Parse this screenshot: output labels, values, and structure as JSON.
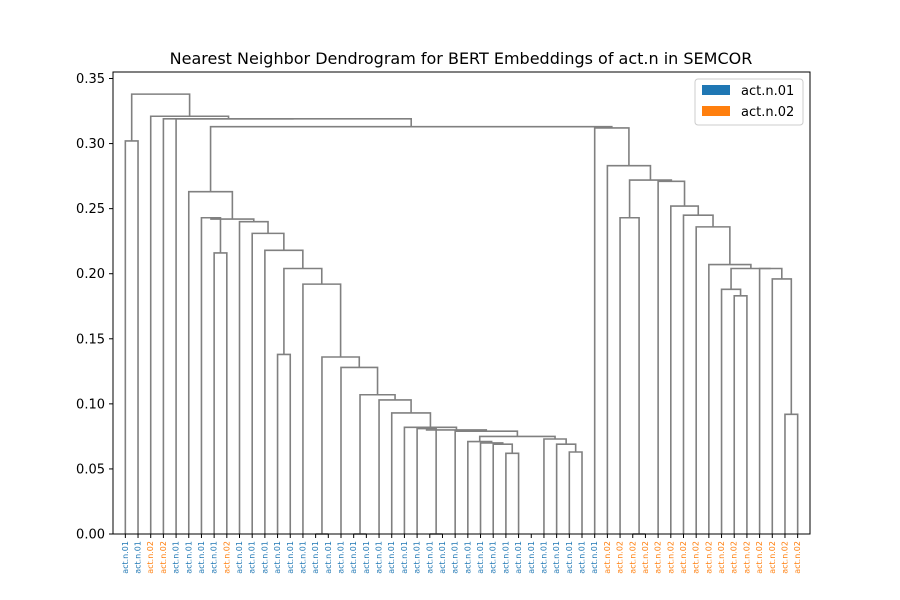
{
  "chart_data": {
    "type": "dendrogram",
    "title": "Nearest Neighbor Dendrogram for BERT Embeddings of act.n in SEMCOR",
    "xlabel": "",
    "ylabel": "",
    "ylim": [
      0,
      0.355
    ],
    "yticks": [
      0.0,
      0.05,
      0.1,
      0.15,
      0.2,
      0.25,
      0.3,
      0.35
    ],
    "ytick_labels": [
      "0.00",
      "0.05",
      "0.10",
      "0.15",
      "0.20",
      "0.25",
      "0.30",
      "0.35"
    ],
    "legend_position": "top-right",
    "legend": [
      {
        "label": "act.n.01",
        "color": "#1f77b4"
      },
      {
        "label": "act.n.02",
        "color": "#ff7f0e"
      }
    ],
    "link_color": "#808080",
    "leaves": [
      "act.n.01",
      "act.n.01",
      "act.n.02",
      "act.n.02",
      "act.n.01",
      "act.n.01",
      "act.n.01",
      "act.n.01",
      "act.n.02",
      "act.n.01",
      "act.n.01",
      "act.n.01",
      "act.n.01",
      "act.n.01",
      "act.n.01",
      "act.n.01",
      "act.n.01",
      "act.n.01",
      "act.n.01",
      "act.n.01",
      "act.n.01",
      "act.n.01",
      "act.n.01",
      "act.n.01",
      "act.n.01",
      "act.n.01",
      "act.n.01",
      "act.n.01",
      "act.n.01",
      "act.n.01",
      "act.n.01",
      "act.n.01",
      "act.n.01",
      "act.n.01",
      "act.n.01",
      "act.n.01",
      "act.n.01",
      "act.n.01",
      "act.n.02",
      "act.n.02",
      "act.n.02",
      "act.n.02",
      "act.n.02",
      "act.n.02",
      "act.n.02",
      "act.n.02",
      "act.n.02",
      "act.n.02",
      "act.n.02",
      "act.n.02",
      "act.n.02",
      "act.n.02",
      "act.n.02",
      "act.n.02"
    ],
    "links": [
      {
        "x": [
          0.5,
          0.5,
          1.5,
          1.5
        ],
        "y": [
          0.0,
          0.302,
          0.302,
          0.0
        ]
      },
      {
        "x": [
          7.5,
          7.5,
          8.5,
          8.5
        ],
        "y": [
          0.0,
          0.216,
          0.216,
          0.0
        ]
      },
      {
        "x": [
          6.5,
          6.5,
          8.0,
          8.0
        ],
        "y": [
          0.0,
          0.243,
          0.243,
          0.216
        ]
      },
      {
        "x": [
          15.5,
          15.5,
          16.5,
          16.5
        ],
        "y": [
          0.0,
          0.0,
          0.0,
          0.0
        ]
      },
      {
        "x": [
          18.5,
          18.5,
          19.5,
          19.5
        ],
        "y": [
          0.0,
          0.0,
          0.0,
          0.0
        ]
      },
      {
        "x": [
          24.5,
          24.5,
          25.5,
          25.5
        ],
        "y": [
          0.0,
          0.0,
          0.0,
          0.0
        ]
      },
      {
        "x": [
          23.5,
          23.5,
          25.0,
          25.0
        ],
        "y": [
          0.0,
          0.081,
          0.081,
          0.0
        ]
      },
      {
        "x": [
          30.5,
          30.5,
          31.5,
          31.5
        ],
        "y": [
          0.0,
          0.062,
          0.062,
          0.0
        ]
      },
      {
        "x": [
          29.5,
          29.5,
          31.0,
          31.0
        ],
        "y": [
          0.0,
          0.069,
          0.069,
          0.062
        ]
      },
      {
        "x": [
          28.5,
          28.5,
          30.25,
          30.25
        ],
        "y": [
          0.0,
          0.07,
          0.07,
          0.069
        ]
      },
      {
        "x": [
          27.5,
          27.5,
          29.375,
          29.375
        ],
        "y": [
          0.0,
          0.071,
          0.071,
          0.07
        ]
      },
      {
        "x": [
          35.5,
          35.5,
          36.5,
          36.5
        ],
        "y": [
          0.0,
          0.063,
          0.063,
          0.0
        ]
      },
      {
        "x": [
          34.5,
          34.5,
          36.0,
          36.0
        ],
        "y": [
          0.0,
          0.069,
          0.069,
          0.063
        ]
      },
      {
        "x": [
          33.5,
          33.5,
          35.25,
          35.25
        ],
        "y": [
          0.0,
          0.073,
          0.073,
          0.069
        ]
      },
      {
        "x": [
          28.4375,
          28.4375,
          34.375,
          34.375
        ],
        "y": [
          0.071,
          0.075,
          0.075,
          0.073
        ]
      },
      {
        "x": [
          26.5,
          26.5,
          31.40625,
          31.40625
        ],
        "y": [
          0.0,
          0.079,
          0.079,
          0.075
        ]
      },
      {
        "x": [
          24.25,
          24.25,
          28.953125,
          28.953125
        ],
        "y": [
          0.081,
          0.08,
          0.08,
          0.079
        ]
      },
      {
        "x": [
          22.5,
          22.5,
          26.6015625,
          26.6015625
        ],
        "y": [
          0.0,
          0.082,
          0.082,
          0.08
        ]
      },
      {
        "x": [
          21.5,
          21.5,
          24.55078125,
          24.55078125
        ],
        "y": [
          0.0,
          0.093,
          0.093,
          0.082
        ]
      },
      {
        "x": [
          20.5,
          20.5,
          23.025390625,
          23.025390625
        ],
        "y": [
          0.0,
          0.103,
          0.103,
          0.093
        ]
      },
      {
        "x": [
          19.0,
          19.0,
          21.7626953125,
          21.7626953125
        ],
        "y": [
          0.0,
          0.107,
          0.107,
          0.103
        ]
      },
      {
        "x": [
          17.5,
          17.5,
          20.38134765625,
          20.38134765625
        ],
        "y": [
          0.0,
          0.128,
          0.128,
          0.107
        ]
      },
      {
        "x": [
          16.0,
          16.0,
          18.940673828125,
          18.940673828125
        ],
        "y": [
          0.0,
          0.136,
          0.136,
          0.128
        ]
      },
      {
        "x": [
          14.5,
          14.5,
          17.4703369140625,
          17.4703369140625
        ],
        "y": [
          0.0,
          0.192,
          0.192,
          0.136
        ]
      },
      {
        "x": [
          12.5,
          12.5,
          13.5,
          13.5
        ],
        "y": [
          0.0,
          0.138,
          0.138,
          0.0
        ]
      },
      {
        "x": [
          13.0,
          13.0,
          15.98516845703125,
          15.98516845703125
        ],
        "y": [
          0.138,
          0.204,
          0.204,
          0.192
        ]
      },
      {
        "x": [
          11.5,
          11.5,
          14.492584228515625,
          14.492584228515625
        ],
        "y": [
          0.0,
          0.218,
          0.218,
          0.204
        ]
      },
      {
        "x": [
          10.5,
          10.5,
          12.996292114257812,
          12.996292114257812
        ],
        "y": [
          0.0,
          0.231,
          0.231,
          0.218
        ]
      },
      {
        "x": [
          9.5,
          9.5,
          11.748146057128906,
          11.748146057128906
        ],
        "y": [
          0.0,
          0.24,
          0.24,
          0.231
        ]
      },
      {
        "x": [
          7.25,
          7.25,
          10.624073028564453,
          10.624073028564453
        ],
        "y": [
          0.243,
          0.242,
          0.242,
          0.24
        ]
      },
      {
        "x": [
          5.5,
          5.5,
          8.937036514282227,
          8.937036514282227
        ],
        "y": [
          0.0,
          0.263,
          0.263,
          0.242
        ]
      },
      {
        "x": [
          40.5,
          40.5,
          41.5,
          41.5
        ],
        "y": [
          0.0,
          0.0,
          0.0,
          0.0
        ]
      },
      {
        "x": [
          39.5,
          39.5,
          41.0,
          41.0
        ],
        "y": [
          0.0,
          0.243,
          0.243,
          0.0
        ]
      },
      {
        "x": [
          48.5,
          48.5,
          49.5,
          49.5
        ],
        "y": [
          0.0,
          0.183,
          0.183,
          0.0
        ]
      },
      {
        "x": [
          47.5,
          47.5,
          49.0,
          49.0
        ],
        "y": [
          0.0,
          0.188,
          0.188,
          0.183
        ]
      },
      {
        "x": [
          52.5,
          52.5,
          53.5,
          53.5
        ],
        "y": [
          0.0,
          0.092,
          0.092,
          0.0
        ]
      },
      {
        "x": [
          51.5,
          51.5,
          53.0,
          53.0
        ],
        "y": [
          0.0,
          0.196,
          0.196,
          0.092
        ]
      },
      {
        "x": [
          50.5,
          50.5,
          52.25,
          52.25
        ],
        "y": [
          0.0,
          0.204,
          0.204,
          0.196
        ]
      },
      {
        "x": [
          48.25,
          48.25,
          51.375,
          51.375
        ],
        "y": [
          0.188,
          0.204,
          0.204,
          0.204
        ]
      },
      {
        "x": [
          46.5,
          46.5,
          49.8125,
          49.8125
        ],
        "y": [
          0.0,
          0.207,
          0.207,
          0.204
        ]
      },
      {
        "x": [
          45.5,
          45.5,
          48.15625,
          48.15625
        ],
        "y": [
          0.0,
          0.236,
          0.236,
          0.207
        ]
      },
      {
        "x": [
          44.5,
          44.5,
          46.828125,
          46.828125
        ],
        "y": [
          0.0,
          0.245,
          0.245,
          0.236
        ]
      },
      {
        "x": [
          43.5,
          43.5,
          45.6640625,
          45.6640625
        ],
        "y": [
          0.0,
          0.252,
          0.252,
          0.245
        ]
      },
      {
        "x": [
          42.5,
          42.5,
          44.58203125,
          44.58203125
        ],
        "y": [
          0.0,
          0.271,
          0.271,
          0.252
        ]
      },
      {
        "x": [
          40.25,
          40.25,
          43.541015625,
          43.541015625
        ],
        "y": [
          0.243,
          0.272,
          0.272,
          0.271
        ]
      },
      {
        "x": [
          38.5,
          38.5,
          41.8955078125,
          41.8955078125
        ],
        "y": [
          0.0,
          0.283,
          0.283,
          0.272
        ]
      },
      {
        "x": [
          37.5,
          37.5,
          40.19775390625,
          40.19775390625
        ],
        "y": [
          0.0,
          0.312,
          0.312,
          0.283
        ]
      },
      {
        "x": [
          7.218518257141113,
          7.218518257141113,
          38.848876953125,
          38.848876953125
        ],
        "y": [
          0.263,
          0.313,
          0.313,
          0.312
        ]
      },
      {
        "x": [
          4.5,
          4.5,
          23.033697605133057,
          23.033697605133057
        ],
        "y": [
          0.0,
          0.319,
          0.319,
          0.313
        ]
      },
      {
        "x": [
          3.5,
          3.5,
          13.766848802566528,
          13.766848802566528
        ],
        "y": [
          0.0,
          0.319,
          0.319,
          0.319
        ]
      },
      {
        "x": [
          2.5,
          2.5,
          8.633424401283264,
          8.633424401283264
        ],
        "y": [
          0.0,
          0.321,
          0.321,
          0.319
        ]
      },
      {
        "x": [
          1.0,
          1.0,
          5.566712200641632,
          5.566712200641632
        ],
        "y": [
          0.302,
          0.338,
          0.338,
          0.321
        ]
      }
    ]
  }
}
